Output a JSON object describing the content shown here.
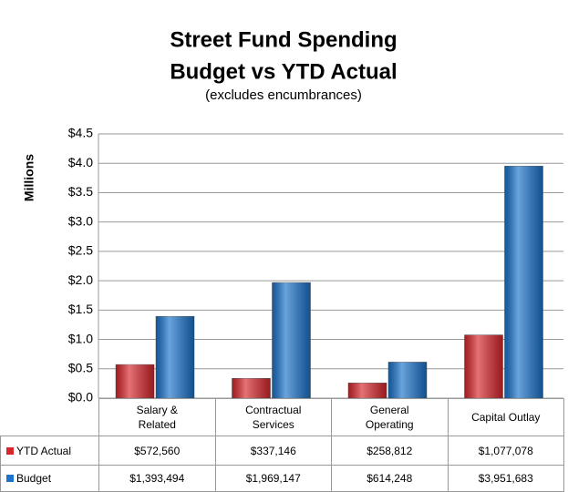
{
  "chart_data": {
    "type": "bar",
    "title": "Street Fund Spending",
    "title_line2": "Budget vs YTD Actual",
    "subtitle": "(excludes encumbrances)",
    "y_label": "Millions",
    "categories": [
      "Salary & Related",
      "Contractual Services",
      "General Operating",
      "Capital Outlay"
    ],
    "series": [
      {
        "name": "YTD Actual",
        "color": "#d8262c",
        "values": [
          0.57256,
          0.337146,
          0.258812,
          1.077078
        ],
        "value_labels": [
          "$572,560",
          "$337,146",
          "$258,812",
          "$1,077,078"
        ]
      },
      {
        "name": "Budget",
        "color": "#1a73cc",
        "values": [
          1.393494,
          1.969147,
          0.614248,
          3.951683
        ],
        "value_labels": [
          "$1,393,494",
          "$1,969,147",
          "$614,248",
          "$3,951,683"
        ]
      }
    ],
    "ylim": [
      0,
      4.5
    ],
    "yticks": [
      {
        "value": 0,
        "label": "$0.0"
      },
      {
        "value": 0.5,
        "label": "$0.5"
      },
      {
        "value": 1,
        "label": "$1.0"
      },
      {
        "value": 1.5,
        "label": "$1.5"
      },
      {
        "value": 2,
        "label": "$2.0"
      },
      {
        "value": 2.5,
        "label": "$2.5"
      },
      {
        "value": 3,
        "label": "$3.0"
      },
      {
        "value": 3.5,
        "label": "$3.5"
      },
      {
        "value": 4,
        "label": "$4.0"
      },
      {
        "value": 4.5,
        "label": "$4.5"
      }
    ],
    "grid": true
  }
}
